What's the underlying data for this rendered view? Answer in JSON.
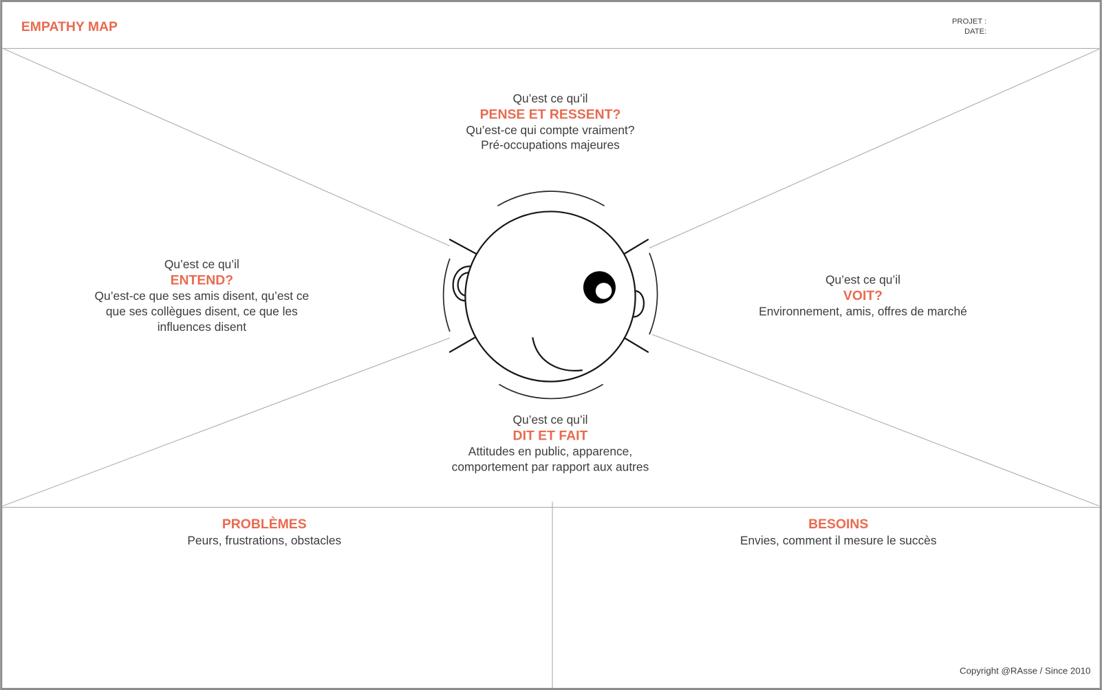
{
  "header": {
    "title": "EMPATHY MAP",
    "projet_label": "PROJET :",
    "date_label": "DATE:"
  },
  "sections": {
    "pense": {
      "intro": "Qu’est ce qu’il",
      "title": "PENSE ET RESSENT?",
      "lines": [
        "Qu’est-ce qui compte vraiment?",
        "Pré-occupations majeures"
      ]
    },
    "entend": {
      "intro": "Qu’est ce qu’il",
      "title": "ENTEND?",
      "lines": [
        "Qu’est-ce que ses amis disent, qu’est ce",
        "que ses collègues disent, ce que les",
        "influences disent"
      ]
    },
    "voit": {
      "intro": "Qu’est ce qu’il",
      "title": "VOIT?",
      "lines": [
        "Environnement, amis, offres de marché"
      ]
    },
    "dit": {
      "intro": "Qu’est ce qu’il",
      "title": "DIT ET FAIT",
      "lines": [
        "Attitudes en public, apparence,",
        "comportement par rapport aux autres"
      ]
    }
  },
  "problemes": {
    "title": "PROBLÈMES",
    "description": "Peurs, frustrations, obstacles"
  },
  "besoins": {
    "title": "BESOINS",
    "description": "Envies, comment il mesure le succès"
  },
  "footer": {
    "copyright": "Copyright @RAsse / Since 2010"
  },
  "colors": {
    "accent": "#E96A4F",
    "text": "#3C3C3C",
    "line": "#ADADAD"
  }
}
